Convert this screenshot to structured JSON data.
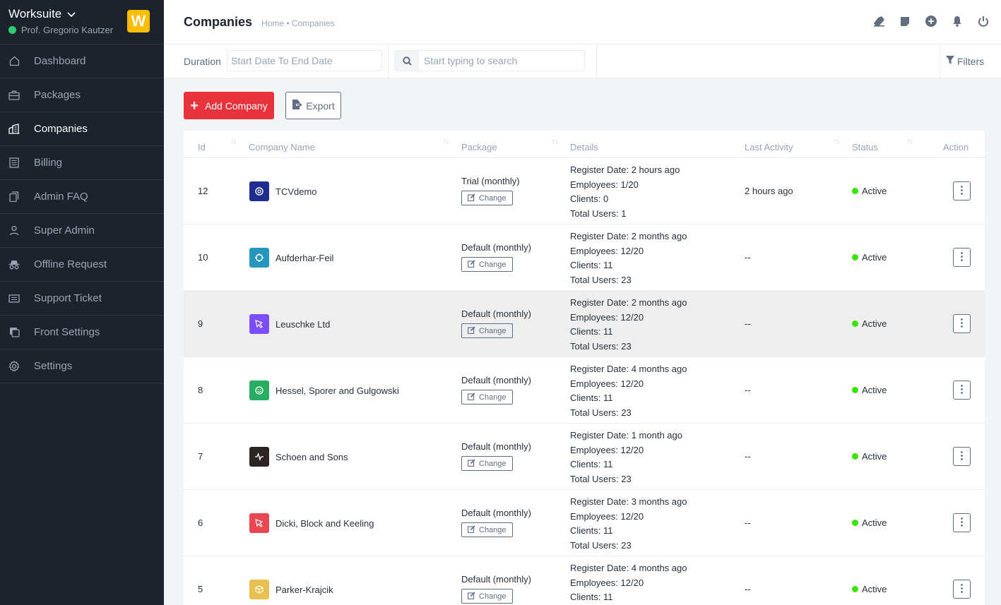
{
  "app": {
    "brand": "Worksuite",
    "user": "Prof. Gregorio Kautzer",
    "logo_letter": "W"
  },
  "sidebar": {
    "items": [
      {
        "label": "Dashboard",
        "icon": "house-icon"
      },
      {
        "label": "Packages",
        "icon": "briefcase-icon"
      },
      {
        "label": "Companies",
        "icon": "buildings-icon"
      },
      {
        "label": "Billing",
        "icon": "receipt-icon"
      },
      {
        "label": "Admin FAQ",
        "icon": "files-icon"
      },
      {
        "label": "Super Admin",
        "icon": "person-icon"
      },
      {
        "label": "Offline Request",
        "icon": "incognito-icon"
      },
      {
        "label": "Support Ticket",
        "icon": "ticket-icon"
      },
      {
        "label": "Front Settings",
        "icon": "window-stack-icon"
      },
      {
        "label": "Settings",
        "icon": "gear-icon"
      }
    ],
    "active": "Companies"
  },
  "header": {
    "title": "Companies",
    "breadcrumb": "Home • Companies"
  },
  "filters": {
    "duration_label": "Duration",
    "date_placeholder": "Start Date To End Date",
    "search_placeholder": "Start typing to search",
    "filters_label": "Filters"
  },
  "actions": {
    "add_label": "Add Company",
    "export_label": "Export"
  },
  "table": {
    "columns": [
      "Id",
      "Company Name",
      "Package",
      "Details",
      "Last Activity",
      "Status",
      "Action"
    ],
    "change_label": "Change",
    "rows": [
      {
        "id": "12",
        "name": "TCVdemo",
        "logo_color": "#1e2d8f",
        "package": "Trial (monthly)",
        "register": "Register Date: 2 hours ago",
        "employees": "Employees: 1/20",
        "clients": "Clients: 0",
        "users": "Total Users: 1",
        "activity": "2 hours ago",
        "status": "Active"
      },
      {
        "id": "10",
        "name": "Aufderhar-Feil",
        "logo_color": "#2596be",
        "package": "Default (monthly)",
        "register": "Register Date: 2 months ago",
        "employees": "Employees: 12/20",
        "clients": "Clients: 11",
        "users": "Total Users: 23",
        "activity": "--",
        "status": "Active"
      },
      {
        "id": "9",
        "name": "Leuschke Ltd",
        "logo_color": "#7c4dff",
        "package": "Default (monthly)",
        "register": "Register Date: 2 months ago",
        "employees": "Employees: 12/20",
        "clients": "Clients: 11",
        "users": "Total Users: 23",
        "activity": "--",
        "status": "Active"
      },
      {
        "id": "8",
        "name": "Hessel, Sporer and Gulgowski",
        "logo_color": "#27ae60",
        "package": "Default (monthly)",
        "register": "Register Date: 4 months ago",
        "employees": "Employees: 12/20",
        "clients": "Clients: 11",
        "users": "Total Users: 23",
        "activity": "--",
        "status": "Active"
      },
      {
        "id": "7",
        "name": "Schoen and Sons",
        "logo_color": "#2d2424",
        "package": "Default (monthly)",
        "register": "Register Date: 1 month ago",
        "employees": "Employees: 12/20",
        "clients": "Clients: 11",
        "users": "Total Users: 23",
        "activity": "--",
        "status": "Active"
      },
      {
        "id": "6",
        "name": "Dicki, Block and Keeling",
        "logo_color": "#e8474f",
        "package": "Default (monthly)",
        "register": "Register Date: 3 months ago",
        "employees": "Employees: 12/20",
        "clients": "Clients: 11",
        "users": "Total Users: 23",
        "activity": "--",
        "status": "Active"
      },
      {
        "id": "5",
        "name": "Parker-Krajcik",
        "logo_color": "#e8c050",
        "package": "Default (monthly)",
        "register": "Register Date: 4 months ago",
        "employees": "Employees: 12/20",
        "clients": "Clients: 11",
        "users": "",
        "activity": "--",
        "status": "Active"
      }
    ]
  }
}
